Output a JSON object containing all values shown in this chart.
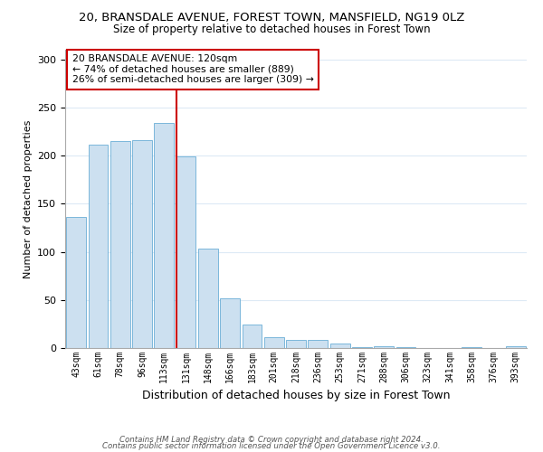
{
  "title": "20, BRANSDALE AVENUE, FOREST TOWN, MANSFIELD, NG19 0LZ",
  "subtitle": "Size of property relative to detached houses in Forest Town",
  "xlabel": "Distribution of detached houses by size in Forest Town",
  "ylabel": "Number of detached properties",
  "bar_labels": [
    "43sqm",
    "61sqm",
    "78sqm",
    "96sqm",
    "113sqm",
    "131sqm",
    "148sqm",
    "166sqm",
    "183sqm",
    "201sqm",
    "218sqm",
    "236sqm",
    "253sqm",
    "271sqm",
    "288sqm",
    "306sqm",
    "323sqm",
    "341sqm",
    "358sqm",
    "376sqm",
    "393sqm"
  ],
  "bar_values": [
    136,
    211,
    215,
    216,
    234,
    199,
    103,
    52,
    24,
    11,
    8,
    8,
    5,
    1,
    2,
    1,
    0,
    0,
    1,
    0,
    2
  ],
  "bar_color": "#cce0f0",
  "bar_edge_color": "#6aaed6",
  "vline_index": 5,
  "vline_color": "#cc0000",
  "annotation_title": "20 BRANSDALE AVENUE: 120sqm",
  "annotation_line1": "← 74% of detached houses are smaller (889)",
  "annotation_line2": "26% of semi-detached houses are larger (309) →",
  "annotation_box_color": "#ffffff",
  "annotation_box_edge": "#cc0000",
  "ylim": [
    0,
    310
  ],
  "yticks": [
    0,
    50,
    100,
    150,
    200,
    250,
    300
  ],
  "footer_line1": "Contains HM Land Registry data © Crown copyright and database right 2024.",
  "footer_line2": "Contains public sector information licensed under the Open Government Licence v3.0.",
  "bg_color": "#ffffff",
  "grid_color": "#ddeaf5",
  "title_fontsize": 9.5,
  "subtitle_fontsize": 8.5
}
